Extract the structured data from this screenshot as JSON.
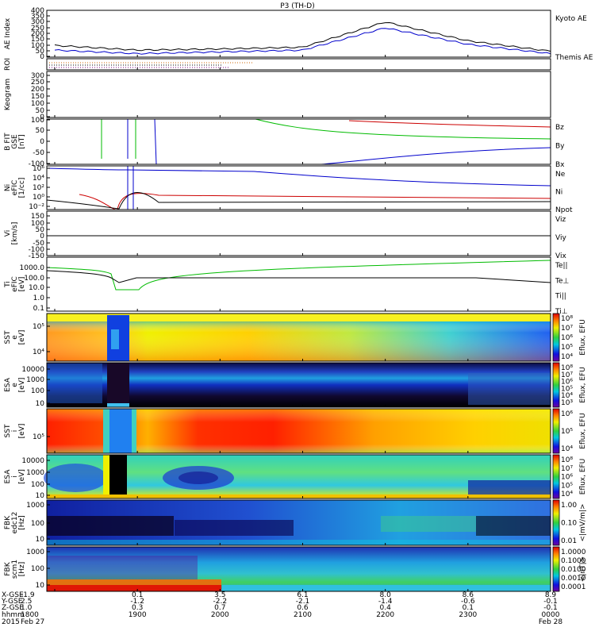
{
  "title": "P3 (TH-D)",
  "panels": [
    {
      "id": "ae",
      "ylabel": [
        "AE Index"
      ],
      "ticks": [
        "400",
        "350",
        "300",
        "250",
        "200",
        "150",
        "100",
        "50",
        "0"
      ],
      "legend": [
        {
          "text": "Kyoto AE",
          "color": "#0000cc"
        },
        {
          "text": "Themis AE",
          "color": "#000000"
        }
      ]
    },
    {
      "id": "roi",
      "ylabel": [
        "ROI"
      ],
      "ticks": [],
      "legend": []
    },
    {
      "id": "keogram",
      "ylabel": [
        "Keogram"
      ],
      "ticks": [
        "300",
        "250",
        "200",
        "150",
        "100",
        "50",
        "0"
      ],
      "legend": []
    },
    {
      "id": "bfit",
      "ylabel": [
        "B FIT",
        "GSE",
        "[nT]"
      ],
      "ticks": [
        "100",
        "50",
        "0",
        "-50",
        "-100"
      ],
      "legend": [
        {
          "text": "Bz",
          "color": "#cc0000"
        },
        {
          "text": "By",
          "color": "#00bb00"
        },
        {
          "text": "Bx",
          "color": "#0000cc"
        }
      ]
    },
    {
      "id": "ni",
      "ylabel": [
        "Ni",
        "eFIC",
        "[1/cc]"
      ],
      "ticks": [
        "10⁶",
        "10⁴",
        "10²",
        "10⁰",
        "10⁻²"
      ],
      "legend": [
        {
          "text": "Ne",
          "color": "#cc0000"
        },
        {
          "text": "Ni",
          "color": "#000000"
        },
        {
          "text": "Npot",
          "color": "#0000cc"
        }
      ]
    },
    {
      "id": "vi",
      "ylabel": [
        "Vi",
        "[km/s]"
      ],
      "ticks": [
        "150",
        "100",
        "50",
        "0",
        "-50",
        "-100",
        "-150"
      ],
      "legend": [
        {
          "text": "Viz",
          "color": "#cc0000"
        },
        {
          "text": "Viy",
          "color": "#00bb00"
        },
        {
          "text": "Vix",
          "color": "#0000cc"
        }
      ]
    },
    {
      "id": "ti",
      "ylabel": [
        "Ti",
        "eFIC",
        "[eV]"
      ],
      "ticks": [
        "1000.0",
        "100.0",
        "10.0",
        "1.0",
        "0.1"
      ],
      "legend": [
        {
          "text": "Te||",
          "color": "#000000"
        },
        {
          "text": "Te⊥",
          "color": "#cc0000"
        },
        {
          "text": "Ti||",
          "color": "#00bb00"
        },
        {
          "text": "Ti⊥",
          "color": "#0000cc"
        }
      ]
    },
    {
      "id": "sste",
      "ylabel": [
        "SST",
        "e",
        "[eV]"
      ],
      "ticks": [
        "10⁵",
        "10⁴"
      ],
      "legend": []
    },
    {
      "id": "esae",
      "ylabel": [
        "ESA",
        "e",
        "[eV]"
      ],
      "ticks": [
        "10000",
        "1000",
        "100",
        "10"
      ],
      "legend": []
    },
    {
      "id": "ssti",
      "ylabel": [
        "SST",
        "i",
        "[eV]"
      ],
      "ticks": [
        "10⁵"
      ],
      "legend": []
    },
    {
      "id": "esai",
      "ylabel": [
        "ESA",
        "i",
        "[eV]"
      ],
      "ticks": [
        "10000",
        "1000",
        "100",
        "10"
      ],
      "legend": []
    },
    {
      "id": "fbke",
      "ylabel": [
        "FBK",
        "edc12",
        "[Hz]"
      ],
      "ticks": [
        "1000",
        "100",
        "10"
      ],
      "legend": []
    },
    {
      "id": "fbkb",
      "ylabel": [
        "FBK",
        "scm1",
        "[Hz]"
      ],
      "ticks": [
        "1000",
        "100",
        "10"
      ],
      "legend": []
    }
  ],
  "colorbars": [
    {
      "id": "cb-sste",
      "label": "Eflux, EFU",
      "ticks": [
        "10⁸",
        "10⁷",
        "10⁶",
        "10⁵",
        "10⁴"
      ]
    },
    {
      "id": "cb-esae",
      "label": "Eflux, EFU",
      "ticks": [
        "10⁸",
        "10⁷",
        "10⁶",
        "10⁵",
        "10⁴",
        "10³"
      ]
    },
    {
      "id": "cb-ssti",
      "label": "Eflux, EFU",
      "ticks": [
        "10⁶",
        "10⁵",
        "10⁴"
      ]
    },
    {
      "id": "cb-esai",
      "label": "Eflux, EFU",
      "ticks": [
        "10⁸",
        "10⁷",
        "10⁶",
        "10⁵",
        "10⁴"
      ]
    },
    {
      "id": "cb-fbke",
      "label": "<|mV/m|>",
      "ticks": [
        "1.00",
        "0.10",
        "0.01"
      ]
    },
    {
      "id": "cb-fbkb",
      "label": "<|nT|>",
      "ticks": [
        "1.0000",
        "0.1000",
        "0.0100",
        "0.0010",
        "0.0001"
      ]
    }
  ],
  "footer": {
    "row_labels": [
      "X-GSE",
      "Y-GSE",
      "Z-GSE",
      "hhmm",
      "2015"
    ],
    "columns": [
      {
        "x": "-1.9",
        "y": "2.5",
        "z": "1.0",
        "t": "1800",
        "d": "Feb 27"
      },
      {
        "x": "0.1",
        "y": "-1.2",
        "z": "0.3",
        "t": "1900",
        "d": ""
      },
      {
        "x": "3.5",
        "y": "-2.2",
        "z": "0.7",
        "t": "2000",
        "d": ""
      },
      {
        "x": "6.1",
        "y": "-2.1",
        "z": "0.6",
        "t": "2100",
        "d": ""
      },
      {
        "x": "8.0",
        "y": "-1.4",
        "z": "0.4",
        "t": "2200",
        "d": ""
      },
      {
        "x": "8.6",
        "y": "-0.6",
        "z": "0.1",
        "t": "2300",
        "d": ""
      },
      {
        "x": "8.9",
        "y": "-0.1",
        "z": "-0.1",
        "t": "0000",
        "d": "Feb 28"
      }
    ]
  },
  "chart_data": {
    "type": "line",
    "title": "P3 (TH-D)",
    "x": [
      "1800",
      "1900",
      "2000",
      "2100",
      "2200",
      "2300",
      "0000"
    ],
    "xlabel": "hhmm",
    "series": [
      {
        "name": "Kyoto AE",
        "values": [
          60,
          30,
          45,
          60,
          250,
          110,
          30
        ]
      },
      {
        "name": "Themis AE",
        "values": [
          100,
          60,
          70,
          85,
          300,
          140,
          50
        ]
      }
    ],
    "ylabel": "AE Index",
    "ylim": [
      0,
      400
    ]
  }
}
